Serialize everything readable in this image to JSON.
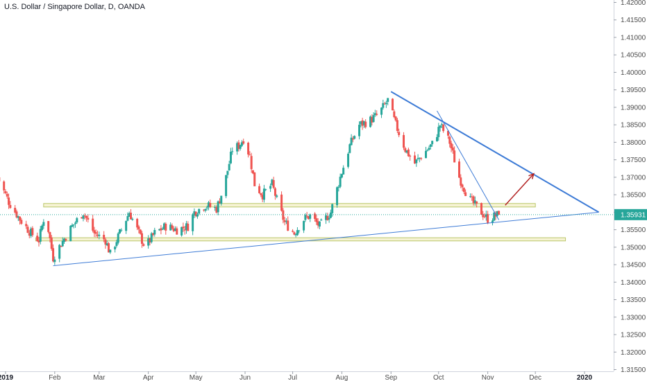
{
  "title": "U.S. Dollar / Singapore Dollar, D, OANDA",
  "colors": {
    "up": "#26a69a",
    "down": "#ef5350",
    "trendline": "#3d7bd6",
    "zone_fill": "#f6f3d4",
    "zone_border": "#b9c66a",
    "arrow": "#b22222",
    "price_line": "#26a69a",
    "price_label_bg": "#26a69a"
  },
  "chart_data": {
    "type": "candlestick",
    "symbol": "U.S. Dollar / Singapore Dollar",
    "interval": "D",
    "source": "OANDA",
    "y_ticks": [
      "1.42000",
      "1.41500",
      "1.41000",
      "1.40500",
      "1.40000",
      "1.39500",
      "1.39000",
      "1.38500",
      "1.38000",
      "1.37500",
      "1.37000",
      "1.36500",
      "1.36000",
      "1.35500",
      "1.35000",
      "1.34500",
      "1.34000",
      "1.33500",
      "1.33000",
      "1.32500",
      "1.32000",
      "1.31500"
    ],
    "ylim": [
      1.315,
      1.42
    ],
    "x_ticks": [
      {
        "label": "2019",
        "bold": true,
        "date": "2019-01-01"
      },
      {
        "label": "Feb",
        "bold": false,
        "date": "2019-02-01"
      },
      {
        "label": "Mar",
        "bold": false,
        "date": "2019-03-01"
      },
      {
        "label": "Apr",
        "bold": false,
        "date": "2019-04-01"
      },
      {
        "label": "May",
        "bold": false,
        "date": "2019-05-01"
      },
      {
        "label": "Jun",
        "bold": false,
        "date": "2019-06-01"
      },
      {
        "label": "Jul",
        "bold": false,
        "date": "2019-07-01"
      },
      {
        "label": "Aug",
        "bold": false,
        "date": "2019-08-01"
      },
      {
        "label": "Sep",
        "bold": false,
        "date": "2019-09-01"
      },
      {
        "label": "Oct",
        "bold": false,
        "date": "2019-10-01"
      },
      {
        "label": "Nov",
        "bold": false,
        "date": "2019-11-01"
      },
      {
        "label": "Dec",
        "bold": false,
        "date": "2019-12-01"
      },
      {
        "label": "2020",
        "bold": true,
        "date": "2020-01-01"
      }
    ],
    "last_price": "1.35931",
    "close_path": [
      [
        "2018-12-27",
        1.37
      ],
      [
        "2019-01-03",
        1.363
      ],
      [
        "2019-01-10",
        1.358
      ],
      [
        "2019-01-17",
        1.354
      ],
      [
        "2019-01-22",
        1.352
      ],
      [
        "2019-01-25",
        1.358
      ],
      [
        "2019-01-28",
        1.355
      ],
      [
        "2019-01-31",
        1.347
      ],
      [
        "2019-02-05",
        1.351
      ],
      [
        "2019-02-12",
        1.356
      ],
      [
        "2019-02-19",
        1.36
      ],
      [
        "2019-02-26",
        1.354
      ],
      [
        "2019-03-05",
        1.352
      ],
      [
        "2019-03-08",
        1.348
      ],
      [
        "2019-03-14",
        1.354
      ],
      [
        "2019-03-20",
        1.36
      ],
      [
        "2019-03-26",
        1.354
      ],
      [
        "2019-03-30",
        1.35
      ],
      [
        "2019-04-05",
        1.354
      ],
      [
        "2019-04-12",
        1.356
      ],
      [
        "2019-04-19",
        1.355
      ],
      [
        "2019-04-26",
        1.356
      ],
      [
        "2019-04-30",
        1.36
      ],
      [
        "2019-05-07",
        1.362
      ],
      [
        "2019-05-14",
        1.361
      ],
      [
        "2019-05-17",
        1.365
      ],
      [
        "2019-05-20",
        1.37
      ],
      [
        "2019-05-24",
        1.378
      ],
      [
        "2019-05-28",
        1.379
      ],
      [
        "2019-05-31",
        1.381
      ],
      [
        "2019-06-04",
        1.376
      ],
      [
        "2019-06-07",
        1.368
      ],
      [
        "2019-06-12",
        1.365
      ],
      [
        "2019-06-18",
        1.368
      ],
      [
        "2019-06-22",
        1.362
      ],
      [
        "2019-06-26",
        1.357
      ],
      [
        "2019-07-02",
        1.354
      ],
      [
        "2019-07-08",
        1.358
      ],
      [
        "2019-07-12",
        1.359
      ],
      [
        "2019-07-18",
        1.356
      ],
      [
        "2019-07-25",
        1.36
      ],
      [
        "2019-07-31",
        1.37
      ],
      [
        "2019-08-06",
        1.379
      ],
      [
        "2019-08-12",
        1.385
      ],
      [
        "2019-08-18",
        1.386
      ],
      [
        "2019-08-24",
        1.388
      ],
      [
        "2019-08-30",
        1.392
      ],
      [
        "2019-09-04",
        1.385
      ],
      [
        "2019-09-10",
        1.378
      ],
      [
        "2019-09-16",
        1.374
      ],
      [
        "2019-09-22",
        1.377
      ],
      [
        "2019-09-28",
        1.38
      ],
      [
        "2019-10-02",
        1.385
      ],
      [
        "2019-10-08",
        1.38
      ],
      [
        "2019-10-14",
        1.37
      ],
      [
        "2019-10-20",
        1.364
      ],
      [
        "2019-10-26",
        1.361
      ],
      [
        "2019-11-01",
        1.358
      ],
      [
        "2019-11-06",
        1.359
      ],
      [
        "2019-11-08",
        1.35931
      ]
    ],
    "drawings": {
      "resistance_zone": {
        "from": "2019-01-25",
        "to": "2019-12-01",
        "y_low": 1.3615,
        "y_high": 1.3625
      },
      "support_zone": {
        "from": "2019-01-20",
        "to": "2019-12-20",
        "y_low": 1.3518,
        "y_high": 1.3527
      },
      "trendlines": [
        {
          "name": "rising-support",
          "from": [
            "2019-01-31",
            1.3447
          ],
          "to": [
            "2020-01-10",
            1.36
          ]
        },
        {
          "name": "descending-major",
          "from": [
            "2019-09-01",
            1.3945
          ],
          "to": [
            "2020-01-10",
            1.36
          ]
        },
        {
          "name": "descending-minor",
          "from": [
            "2019-09-30",
            1.389
          ],
          "to": [
            "2019-11-08",
            1.3578
          ]
        }
      ],
      "arrow": {
        "from": [
          "2019-11-12",
          1.362
        ],
        "to": [
          "2019-11-30",
          1.371
        ]
      }
    }
  }
}
